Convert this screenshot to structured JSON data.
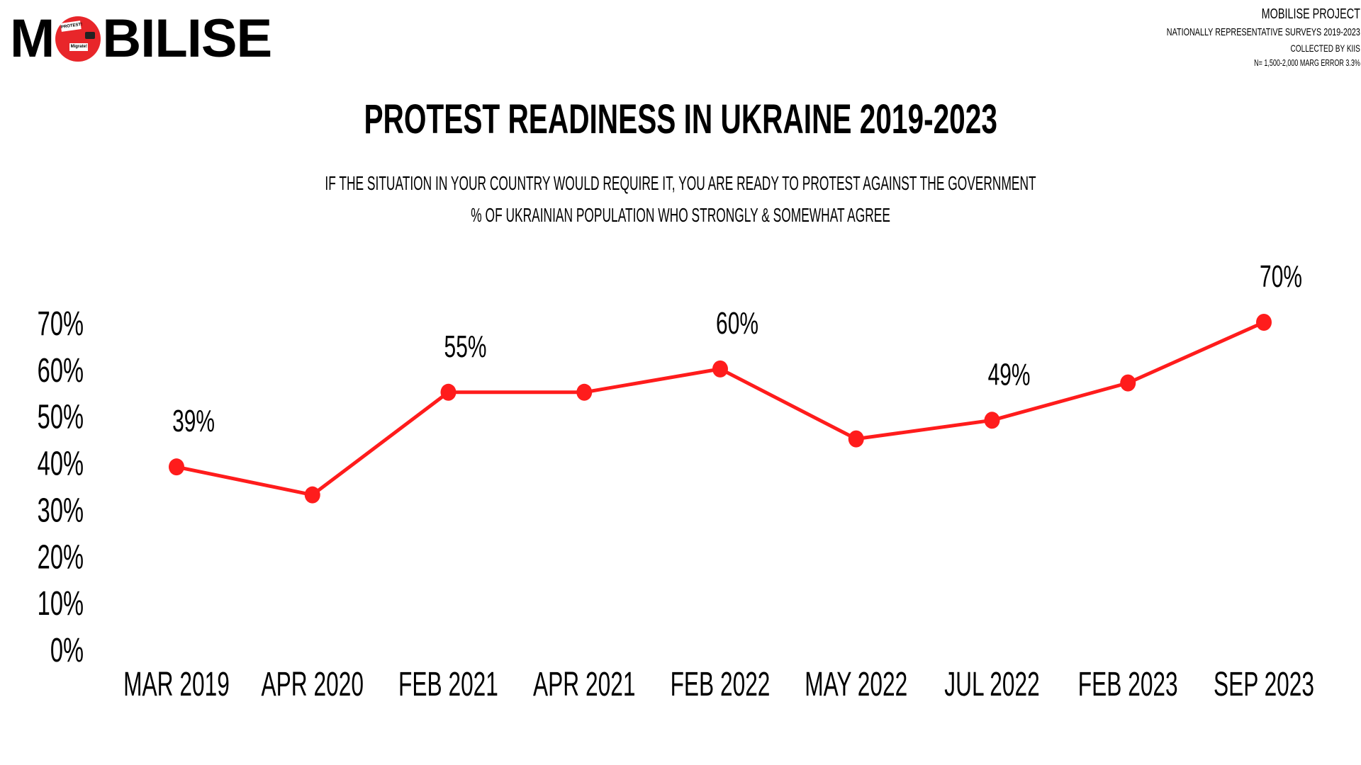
{
  "logo": {
    "text_before": "M",
    "text_after": "BILISE",
    "badge_sign_top": "PROTEST!",
    "badge_sign_bottom": "Migrate!",
    "brand_color": "#e8262a"
  },
  "meta": {
    "project": "MOBILISE PROJECT",
    "surveys": "NATIONALLY REPRESENTATIVE SURVEYS 2019-2023",
    "collected": "COLLECTED BY KIIS",
    "sample": "N= 1,500-2,000 MARG ERROR 3.3%"
  },
  "chart_data": {
    "type": "line",
    "title": "PROTEST READINESS IN UKRAINE 2019-2023",
    "subtitle": "IF THE SITUATION IN YOUR COUNTRY WOULD REQUIRE IT, YOU ARE READY TO PROTEST AGAINST THE GOVERNMENT",
    "subtitle2": "% OF UKRAINIAN POPULATION WHO STRONGLY & SOMEWHAT AGREE",
    "xlabel": "",
    "ylabel": "",
    "categories": [
      "MAR 2019",
      "APR 2020",
      "FEB 2021",
      "APR 2021",
      "FEB 2022",
      "MAY 2022",
      "JUL 2022",
      "FEB 2023",
      "SEP 2023"
    ],
    "series": [
      {
        "name": "Protest readiness",
        "color": "#ff1c1c",
        "values": [
          39,
          33,
          55,
          55,
          60,
          45,
          49,
          57,
          70
        ]
      }
    ],
    "data_labels": [
      {
        "index": 0,
        "text": "39%"
      },
      {
        "index": 2,
        "text": "55%"
      },
      {
        "index": 4,
        "text": "60%"
      },
      {
        "index": 6,
        "text": "49%"
      },
      {
        "index": 8,
        "text": "70%"
      }
    ],
    "ylim": [
      0,
      70
    ],
    "yticks": [
      0,
      10,
      20,
      30,
      40,
      50,
      60,
      70
    ],
    "ytick_labels": [
      "0%",
      "10%",
      "20%",
      "30%",
      "40%",
      "50%",
      "60%",
      "70%"
    ],
    "grid": false,
    "legend": "none"
  }
}
